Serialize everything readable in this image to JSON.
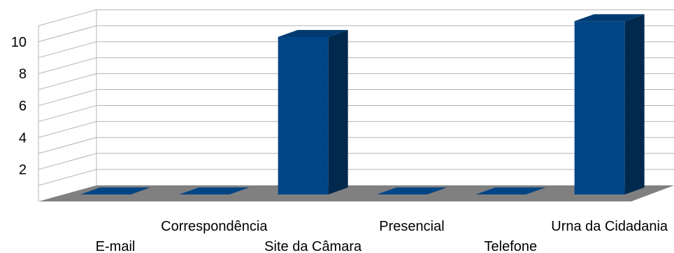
{
  "chart_data": {
    "type": "bar",
    "title": "",
    "xlabel": "",
    "ylabel": "",
    "categories": [
      "E-mail",
      "Correspondência",
      "Site da Câmara",
      "Presencial",
      "Telefone",
      "Urna da Cidadania"
    ],
    "values": [
      0,
      0,
      10,
      0,
      0,
      11
    ],
    "ylim": [
      0,
      11
    ],
    "yticks": [
      2,
      4,
      6,
      8,
      10
    ],
    "grid": true,
    "legend": "none",
    "style": "3d"
  },
  "colors": {
    "bar_front": "#004586",
    "bar_side": "#00294d",
    "bar_top": "#003a70",
    "floor": "#808080",
    "grid": "#b3b3b3",
    "text": "#000000"
  }
}
